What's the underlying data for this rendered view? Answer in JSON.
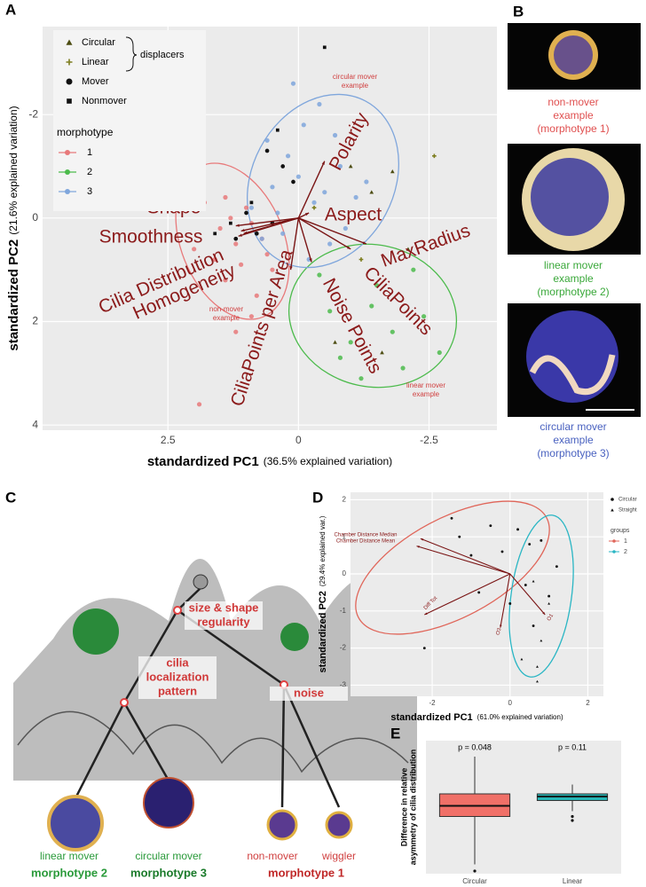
{
  "chart_data": [
    {
      "type": "scatter",
      "panel": "A",
      "xlabel": "standardized PC1",
      "xlabel_note": "(36.5% explained variation)",
      "ylabel": "standardized PC2",
      "ylabel_note": "(21.6% explained variation)",
      "xlim": [
        -3.8,
        4.9
      ],
      "x_reversed": true,
      "xticks": [
        2.5,
        0,
        -2.5
      ],
      "ylim": [
        -3.7,
        4.1
      ],
      "y_reversed": true,
      "yticks": [
        -2,
        0,
        2,
        4
      ],
      "grid": true,
      "shape_legend_label": "displacers",
      "shape_series": [
        {
          "name": "Circular",
          "shape": "triangle",
          "color": "#4d4d12",
          "x": [
            -1.0,
            -1.4,
            -1.8,
            -2.1,
            -0.7,
            -1.6
          ],
          "y": [
            -1.0,
            -0.5,
            -0.9,
            0.6,
            2.4,
            2.6
          ]
        },
        {
          "name": "Linear",
          "shape": "plus",
          "color": "#7d7d1e",
          "x": [
            -1.2,
            -0.3,
            -2.6
          ],
          "y": [
            0.8,
            -0.2,
            -1.2
          ]
        },
        {
          "name": "Mover",
          "shape": "circle",
          "color": "#111111",
          "x": [
            1.0,
            0.6,
            0.3,
            0.8,
            1.2,
            0.1,
            0.5
          ],
          "y": [
            -0.1,
            -1.3,
            -1.0,
            0.3,
            0.4,
            -0.7,
            0.1
          ]
        },
        {
          "name": "Nonmover",
          "shape": "square",
          "color": "#111111",
          "x": [
            1.3,
            1.6,
            0.9,
            0.4,
            -0.5
          ],
          "y": [
            0.1,
            0.3,
            -0.3,
            -1.7,
            -3.3
          ]
        }
      ],
      "legend_title": "morphotype",
      "series": [
        {
          "name": "1",
          "color": "#e8797a",
          "x": [
            1.5,
            1.2,
            0.9,
            1.8,
            1.1,
            0.7,
            1.4,
            1.0,
            0.6,
            1.3,
            2.0,
            0.8,
            1.6,
            1.2,
            0.9,
            1.9,
            1.4,
            0.5
          ],
          "y": [
            0.2,
            0.5,
            0.1,
            -0.3,
            0.9,
            0.4,
            1.2,
            -0.2,
            0.7,
            0.0,
            0.6,
            1.5,
            0.8,
            2.2,
            1.9,
            3.6,
            -0.4,
            1.0
          ]
        },
        {
          "name": "2",
          "color": "#4cbb4c",
          "x": [
            -0.6,
            -1.0,
            -1.5,
            -2.0,
            -2.4,
            -1.2,
            -0.8,
            -1.8,
            -2.7,
            -0.4,
            -1.4,
            -2.2
          ],
          "y": [
            1.8,
            2.4,
            1.3,
            2.9,
            1.9,
            3.1,
            2.7,
            2.2,
            2.6,
            1.1,
            1.7,
            1.0
          ]
        },
        {
          "name": "3",
          "color": "#7fa6dc",
          "x": [
            0.5,
            0.2,
            -0.3,
            -0.8,
            0.9,
            -0.1,
            0.3,
            -0.6,
            -1.1,
            0.6,
            0.0,
            -0.4,
            -0.9,
            0.4,
            -0.2,
            0.1,
            -0.7,
            -1.3,
            0.7,
            -0.5
          ],
          "y": [
            -0.6,
            -1.2,
            -0.3,
            -1.0,
            -0.2,
            -1.8,
            0.3,
            0.5,
            -0.4,
            -1.5,
            -0.8,
            -2.2,
            0.2,
            -0.1,
            0.8,
            -2.6,
            -1.6,
            -0.7,
            0.4,
            -0.5
          ]
        }
      ],
      "loadings": [
        {
          "label": "Shape",
          "x": 1.2,
          "y": 0.15
        },
        {
          "label": "Smoothness",
          "x": 1.1,
          "y": 0.25
        },
        {
          "label": "Cilia Distribution",
          "x": 1.15,
          "y": 0.35
        },
        {
          "label": "Homogeneity",
          "x": 1.05,
          "y": 0.3
        },
        {
          "label": "CiliaPoints per Area",
          "x": 0.15,
          "y": 1.0
        },
        {
          "label": "Noise Points",
          "x": -0.25,
          "y": 0.85
        },
        {
          "label": "CiliaPoints",
          "x": -1.0,
          "y": 0.6
        },
        {
          "label": "MaxRadius",
          "x": -1.3,
          "y": 0.5
        },
        {
          "label": "Aspect",
          "x": -0.2,
          "y": -0.1
        },
        {
          "label": "Polarity",
          "x": -0.5,
          "y": -1.1
        }
      ],
      "annotations": [
        [
          "circular mover",
          "example"
        ],
        [
          "non-mover",
          "example"
        ],
        [
          "linear mover",
          "example"
        ]
      ]
    },
    {
      "type": "scatter",
      "panel": "D",
      "xlabel": "standardized PC1",
      "xlabel_note": "(61.0% explained variation)",
      "ylabel": "standardized PC2",
      "ylabel_note": "(29.4% explained var.)",
      "xlim": [
        -4.1,
        2.4
      ],
      "xticks": [
        -2,
        0,
        2
      ],
      "ylim": [
        -3.3,
        2.2
      ],
      "yticks": [
        2,
        1,
        0,
        -1,
        -2,
        -3
      ],
      "grid": true,
      "shape_series": [
        {
          "name": "Circular",
          "shape": "circle",
          "color": "#111111",
          "x": [
            -1.5,
            -0.5,
            0.2,
            0.5,
            -1.0,
            -0.2,
            0.8,
            1.2,
            0.4,
            -0.8,
            0.0,
            1.0,
            -1.3,
            0.6,
            -2.2
          ],
          "y": [
            1.5,
            1.3,
            1.2,
            0.8,
            0.5,
            0.6,
            0.9,
            0.2,
            -0.3,
            -0.5,
            -0.8,
            -0.6,
            1.0,
            -1.4,
            -2.0
          ]
        },
        {
          "name": "Straight",
          "shape": "triangle",
          "color": "#111111",
          "x": [
            0.6,
            1.0,
            0.8,
            0.3,
            0.7,
            0.7
          ],
          "y": [
            -0.2,
            -0.8,
            -1.8,
            -2.3,
            -2.5,
            -2.9
          ]
        }
      ],
      "legend_title": "groups",
      "series": [
        {
          "name": "1",
          "color": "#e0665a"
        },
        {
          "name": "2",
          "color": "#2ab6c4"
        }
      ],
      "loadings": [
        {
          "label": "Chamber Distance Median",
          "x": -2.3,
          "y": 0.95
        },
        {
          "label": "Chamber Distance Mean",
          "x": -2.4,
          "y": 0.75
        },
        {
          "label": "Diff Tot",
          "x": -2.2,
          "y": -1.1
        },
        {
          "label": "O3",
          "x": -0.25,
          "y": -1.45
        },
        {
          "label": "O1",
          "x": 0.9,
          "y": -1.1
        }
      ]
    },
    {
      "type": "box",
      "panel": "E",
      "ylabel": [
        "Difference in relative",
        "asymmetry of cilia distribution"
      ],
      "ylim": [
        0,
        1
      ],
      "categories": [
        "Circular",
        "Linear"
      ],
      "colors": [
        "#f07068",
        "#26b5b5"
      ],
      "annotations": [
        "p = 0.048",
        "p = 0.11"
      ],
      "low": [
        0.07,
        0.47
      ],
      "q1": [
        0.43,
        0.55
      ],
      "median": [
        0.51,
        0.58
      ],
      "q3": [
        0.6,
        0.6
      ],
      "high": [
        0.88,
        0.67
      ],
      "outliers": [
        [
          0.02
        ],
        [
          0.43,
          0.4
        ]
      ]
    }
  ],
  "panel_b": {
    "label": "B",
    "captions": [
      {
        "lines": [
          "non-mover",
          "example",
          "(morphotype 1)"
        ],
        "color": "#e05050"
      },
      {
        "lines": [
          "linear mover",
          "example",
          "(morphotype 2)"
        ],
        "color": "#3aa83a"
      },
      {
        "lines": [
          "circular mover",
          "example",
          "(morphotype 3)"
        ],
        "color": "#4a62c0"
      }
    ]
  },
  "panel_c": {
    "label": "C",
    "nodes": [
      {
        "lines": [
          "size & shape",
          "regularity"
        ]
      },
      {
        "lines": [
          "cilia",
          "localization",
          "pattern"
        ]
      },
      {
        "lines": [
          "noise"
        ]
      }
    ],
    "leaves": [
      {
        "name": "linear mover",
        "group": "morphotype 2"
      },
      {
        "name": "circular mover",
        "group": "morphotype 3"
      },
      {
        "name": "non-mover",
        "group": "morphotype 1"
      },
      {
        "name": "wiggler"
      }
    ]
  }
}
